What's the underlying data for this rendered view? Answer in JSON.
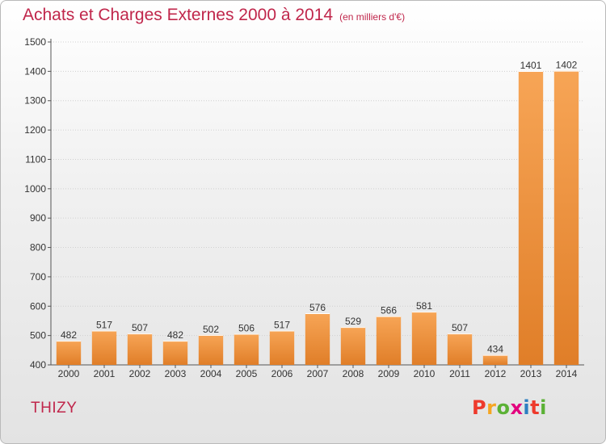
{
  "header": {
    "title": "Achats et Charges Externes 2000 à 2014",
    "unit": "(en milliers d'€)"
  },
  "footer": {
    "town": "THIZY",
    "logo_text": "Proxiti",
    "logo_colors": [
      "#ee3a2c",
      "#f5a623",
      "#5bb135",
      "#e3007e",
      "#2d7fc1",
      "#ee3a2c",
      "#5bb135"
    ]
  },
  "colors": {
    "bar_light": "#f7a556",
    "bar_dark": "#e07e28",
    "title": "#c0264b"
  },
  "chart_data": {
    "type": "bar",
    "title": "Achats et Charges Externes 2000 à 2014",
    "subtitle": "(en milliers d'€)",
    "categories": [
      "2000",
      "2001",
      "2002",
      "2003",
      "2004",
      "2005",
      "2006",
      "2007",
      "2008",
      "2009",
      "2010",
      "2011",
      "2012",
      "2013",
      "2014"
    ],
    "values": [
      482,
      517,
      507,
      482,
      502,
      506,
      517,
      576,
      529,
      566,
      581,
      507,
      434,
      1401,
      1402
    ],
    "ylim": [
      400,
      1500
    ],
    "yticks": [
      400,
      500,
      600,
      700,
      800,
      900,
      1000,
      1100,
      1200,
      1300,
      1400,
      1500
    ],
    "grid": "horizontal"
  }
}
